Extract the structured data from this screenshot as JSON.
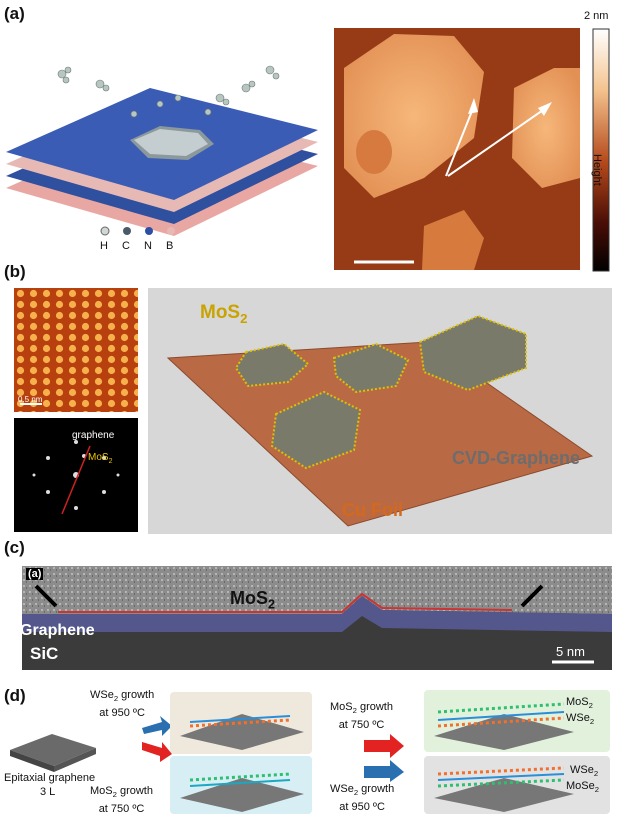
{
  "panels": {
    "a": {
      "label": "(a)",
      "atoms": [
        "H",
        "C",
        "N",
        "B"
      ],
      "colorbar_top": "2 nm",
      "colorbar_axis": "Height",
      "colors": {
        "H": "#cfd8d4",
        "C": "#4a5a66",
        "N": "#2d4fa3",
        "B": "#e8b8b4"
      }
    },
    "b": {
      "label": "(b)",
      "scalebar": "0.5 nm",
      "fft_labels": {
        "graphene": "graphene",
        "mos2": "MoS"
      },
      "schematic": {
        "mos2": "MoS",
        "graphene": "CVD-Graphene",
        "foil": "Cu Foil"
      }
    },
    "c": {
      "label": "(c)",
      "inset": "(a)",
      "mos2": "MoS",
      "graphene": "Graphene",
      "sic": "SiC",
      "scalebar": "5 nm"
    },
    "d": {
      "label": "(d)",
      "substrate": "Epitaxial graphene",
      "layers": "3 L",
      "step1_top": [
        "WSe",
        " growth",
        "at 950 ºC"
      ],
      "step1_bottom": [
        "MoS",
        " growth",
        "at 750 ºC"
      ],
      "step2_top": [
        "MoS",
        " growth",
        "at 750 ºC"
      ],
      "step2_bottom": [
        "WSe",
        " growth",
        "at 950 ºC"
      ],
      "result_top": [
        "MoS",
        "WSe"
      ],
      "result_bottom": [
        "WSe",
        "MoSe"
      ]
    }
  }
}
